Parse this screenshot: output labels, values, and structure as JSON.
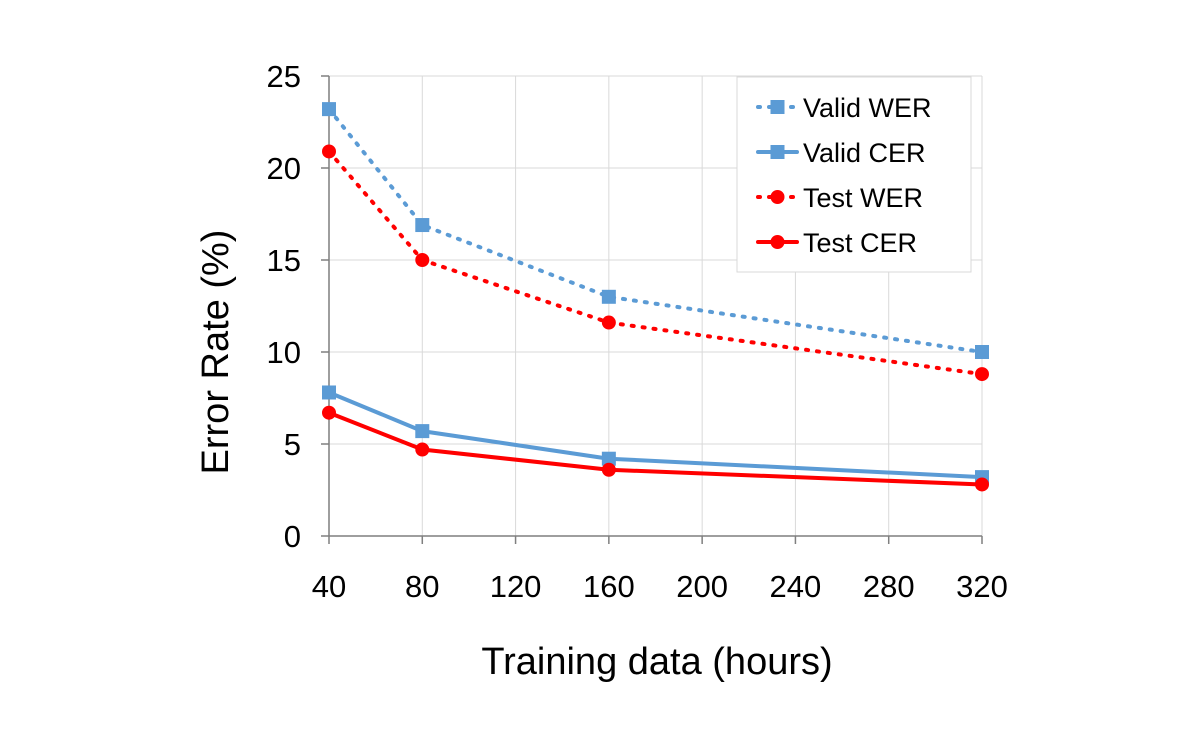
{
  "chart_data": {
    "type": "line",
    "title": "",
    "xlabel": "Training data (hours)",
    "ylabel": "Error Rate (%)",
    "xlim": [
      40,
      320
    ],
    "ylim": [
      0,
      25
    ],
    "x_ticks": [
      40,
      80,
      120,
      160,
      200,
      240,
      280,
      320
    ],
    "y_ticks": [
      0,
      5,
      10,
      15,
      20,
      25
    ],
    "grid": true,
    "legend_position": "top-right",
    "series": [
      {
        "name": "Valid WER",
        "color": "#5b9bd5",
        "line_style": "dotted",
        "marker": "square",
        "x": [
          40,
          80,
          160,
          320
        ],
        "y": [
          23.2,
          16.9,
          13.0,
          10.0
        ]
      },
      {
        "name": "Valid CER",
        "color": "#5b9bd5",
        "line_style": "solid",
        "marker": "square",
        "x": [
          40,
          80,
          160,
          320
        ],
        "y": [
          7.8,
          5.7,
          4.2,
          3.2
        ]
      },
      {
        "name": "Test WER",
        "color": "#ff0000",
        "line_style": "dotted",
        "marker": "circle",
        "x": [
          40,
          80,
          160,
          320
        ],
        "y": [
          20.9,
          15.0,
          11.6,
          8.8
        ]
      },
      {
        "name": "Test CER",
        "color": "#ff0000",
        "line_style": "solid",
        "marker": "circle",
        "x": [
          40,
          80,
          160,
          320
        ],
        "y": [
          6.7,
          4.7,
          3.6,
          2.8
        ]
      }
    ]
  }
}
